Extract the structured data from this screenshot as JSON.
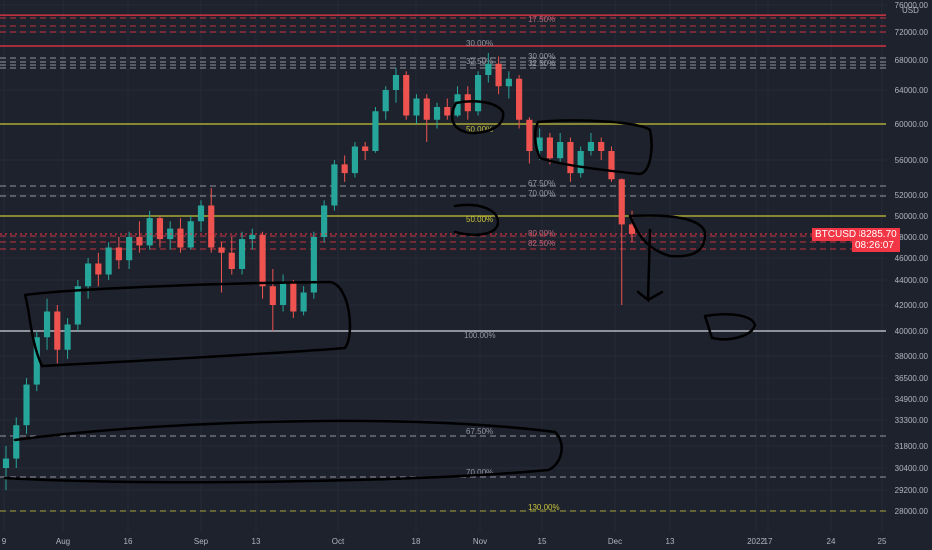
{
  "chart_data": {
    "type": "candlestick",
    "symbol": "BTCUSD",
    "currency": "USD",
    "last_price": "48285.70",
    "countdown": "08:26:07",
    "y_ticks": [
      "76000.00",
      "72000.00",
      "68000.00",
      "64000.00",
      "60000.00",
      "56000.00",
      "52000.00",
      "50000.00",
      "48000.00",
      "46000.00",
      "44000.00",
      "42000.00",
      "40000.00",
      "38000.00",
      "36500.00",
      "34900.00",
      "33300.00",
      "31800.00",
      "30400.00",
      "29200.00",
      "28000.00"
    ],
    "x_ticks": [
      "9",
      "Aug",
      "16",
      "Sep",
      "13",
      "Oct",
      "18",
      "Nov",
      "15",
      "Dec",
      "13",
      "2022",
      "17",
      "24",
      "25"
    ],
    "fib_labels_visible": [
      "30.00%",
      "32.50%",
      "50.00%",
      "67.50%",
      "70.00%",
      "80.00%",
      "82.50%",
      "100.00%",
      "67.50%",
      "70.00%",
      "130.00%",
      "30.00%",
      "32.50%",
      "50.00%",
      "17.50%"
    ],
    "horizontal_levels": [
      {
        "price": 74500,
        "color": "#f23645",
        "style": "solid"
      },
      {
        "price": 70000,
        "color": "#f23645",
        "style": "solid"
      },
      {
        "price": 60000,
        "color": "#c8c43a",
        "style": "solid"
      },
      {
        "price": 50000,
        "color": "#c8c43a",
        "style": "solid"
      },
      {
        "price": 40000,
        "color": "#d1d4dc",
        "style": "solid"
      }
    ],
    "candles": [
      {
        "t": 0,
        "o": 30400,
        "h": 31800,
        "l": 29200,
        "c": 31000
      },
      {
        "t": 1,
        "o": 31000,
        "h": 33500,
        "l": 30400,
        "c": 33000
      },
      {
        "t": 2,
        "o": 33000,
        "h": 36500,
        "l": 32500,
        "c": 36000
      },
      {
        "t": 3,
        "o": 36000,
        "h": 40000,
        "l": 35500,
        "c": 39500
      },
      {
        "t": 4,
        "o": 39500,
        "h": 42500,
        "l": 38500,
        "c": 41500
      },
      {
        "t": 5,
        "o": 41500,
        "h": 42000,
        "l": 37500,
        "c": 38500
      },
      {
        "t": 6,
        "o": 38500,
        "h": 41000,
        "l": 37800,
        "c": 40500
      },
      {
        "t": 7,
        "o": 40500,
        "h": 44000,
        "l": 40000,
        "c": 43500
      },
      {
        "t": 8,
        "o": 43500,
        "h": 46000,
        "l": 42500,
        "c": 45500
      },
      {
        "t": 9,
        "o": 45500,
        "h": 46500,
        "l": 43500,
        "c": 44500
      },
      {
        "t": 10,
        "o": 44500,
        "h": 47500,
        "l": 44000,
        "c": 47000
      },
      {
        "t": 11,
        "o": 47000,
        "h": 48000,
        "l": 45000,
        "c": 45800
      },
      {
        "t": 12,
        "o": 45800,
        "h": 48500,
        "l": 45000,
        "c": 48000
      },
      {
        "t": 13,
        "o": 48000,
        "h": 49500,
        "l": 46500,
        "c": 47200
      },
      {
        "t": 14,
        "o": 47200,
        "h": 50500,
        "l": 46800,
        "c": 49800
      },
      {
        "t": 15,
        "o": 49800,
        "h": 50000,
        "l": 47000,
        "c": 47800
      },
      {
        "t": 16,
        "o": 47800,
        "h": 49500,
        "l": 46800,
        "c": 48800
      },
      {
        "t": 17,
        "o": 48800,
        "h": 49800,
        "l": 46500,
        "c": 47000
      },
      {
        "t": 18,
        "o": 47000,
        "h": 50000,
        "l": 46800,
        "c": 49500
      },
      {
        "t": 19,
        "o": 49500,
        "h": 51500,
        "l": 48500,
        "c": 51000
      },
      {
        "t": 20,
        "o": 51000,
        "h": 52800,
        "l": 46500,
        "c": 47000
      },
      {
        "t": 21,
        "o": 47000,
        "h": 47500,
        "l": 43000,
        "c": 46500
      },
      {
        "t": 22,
        "o": 46500,
        "h": 48000,
        "l": 44500,
        "c": 45000
      },
      {
        "t": 23,
        "o": 45000,
        "h": 48500,
        "l": 44500,
        "c": 47800
      },
      {
        "t": 24,
        "o": 47800,
        "h": 48800,
        "l": 46800,
        "c": 48200
      },
      {
        "t": 25,
        "o": 48200,
        "h": 48500,
        "l": 42500,
        "c": 43500
      },
      {
        "t": 26,
        "o": 43500,
        "h": 45000,
        "l": 40000,
        "c": 42000
      },
      {
        "t": 27,
        "o": 42000,
        "h": 44500,
        "l": 41500,
        "c": 43800
      },
      {
        "t": 28,
        "o": 43800,
        "h": 44000,
        "l": 41000,
        "c": 41500
      },
      {
        "t": 29,
        "o": 41500,
        "h": 43500,
        "l": 41200,
        "c": 43000
      },
      {
        "t": 30,
        "o": 43000,
        "h": 48500,
        "l": 42500,
        "c": 48000
      },
      {
        "t": 31,
        "o": 48000,
        "h": 51500,
        "l": 47500,
        "c": 51000
      },
      {
        "t": 32,
        "o": 51000,
        "h": 56000,
        "l": 50500,
        "c": 55500
      },
      {
        "t": 33,
        "o": 55500,
        "h": 56500,
        "l": 53500,
        "c": 54500
      },
      {
        "t": 34,
        "o": 54500,
        "h": 58000,
        "l": 54000,
        "c": 57500
      },
      {
        "t": 35,
        "o": 57500,
        "h": 58000,
        "l": 56000,
        "c": 57000
      },
      {
        "t": 36,
        "o": 57000,
        "h": 62000,
        "l": 56800,
        "c": 61500
      },
      {
        "t": 37,
        "o": 61500,
        "h": 64500,
        "l": 60500,
        "c": 64000
      },
      {
        "t": 38,
        "o": 64000,
        "h": 67000,
        "l": 62500,
        "c": 66000
      },
      {
        "t": 39,
        "o": 66000,
        "h": 66500,
        "l": 60500,
        "c": 61000
      },
      {
        "t": 40,
        "o": 61000,
        "h": 63500,
        "l": 60000,
        "c": 63000
      },
      {
        "t": 41,
        "o": 63000,
        "h": 63500,
        "l": 58000,
        "c": 60500
      },
      {
        "t": 42,
        "o": 60500,
        "h": 62500,
        "l": 59500,
        "c": 62000
      },
      {
        "t": 43,
        "o": 62000,
        "h": 63000,
        "l": 60500,
        "c": 61000
      },
      {
        "t": 44,
        "o": 61000,
        "h": 64500,
        "l": 60800,
        "c": 63500
      },
      {
        "t": 45,
        "o": 63500,
        "h": 64500,
        "l": 60500,
        "c": 61500
      },
      {
        "t": 46,
        "o": 61500,
        "h": 66500,
        "l": 61000,
        "c": 66000
      },
      {
        "t": 47,
        "o": 66000,
        "h": 69000,
        "l": 65000,
        "c": 67500
      },
      {
        "t": 48,
        "o": 67500,
        "h": 68500,
        "l": 63500,
        "c": 64500
      },
      {
        "t": 49,
        "o": 64500,
        "h": 66500,
        "l": 63000,
        "c": 65500
      },
      {
        "t": 50,
        "o": 65500,
        "h": 66000,
        "l": 59500,
        "c": 60500
      },
      {
        "t": 51,
        "o": 60500,
        "h": 60800,
        "l": 55600,
        "c": 57000
      },
      {
        "t": 52,
        "o": 57000,
        "h": 59500,
        "l": 56000,
        "c": 58500
      },
      {
        "t": 53,
        "o": 58500,
        "h": 59000,
        "l": 55500,
        "c": 56200
      },
      {
        "t": 54,
        "o": 56200,
        "h": 59000,
        "l": 55800,
        "c": 58000
      },
      {
        "t": 55,
        "o": 58000,
        "h": 58500,
        "l": 53500,
        "c": 54500
      },
      {
        "t": 56,
        "o": 54500,
        "h": 57500,
        "l": 54000,
        "c": 57000
      },
      {
        "t": 57,
        "o": 57000,
        "h": 59000,
        "l": 56500,
        "c": 58000
      },
      {
        "t": 58,
        "o": 58000,
        "h": 58500,
        "l": 56000,
        "c": 57000
      },
      {
        "t": 59,
        "o": 57000,
        "h": 57500,
        "l": 53500,
        "c": 53800
      },
      {
        "t": 60,
        "o": 53800,
        "h": 53900,
        "l": 42000,
        "c": 49200
      },
      {
        "t": 61,
        "o": 49200,
        "h": 50500,
        "l": 47500,
        "c": 48285.7
      }
    ]
  }
}
